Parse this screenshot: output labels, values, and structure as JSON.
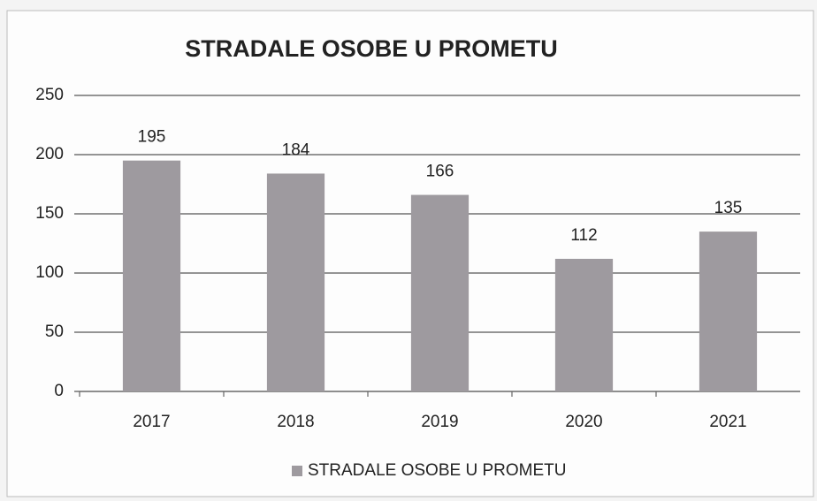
{
  "chart_data": {
    "type": "bar",
    "title": "STRADALE OSOBE U PROMETU",
    "categories": [
      "2017",
      "2018",
      "2019",
      "2020",
      "2021"
    ],
    "series": [
      {
        "name": "STRADALE OSOBE U PROMETU",
        "color": "#9e9a9f",
        "values": [
          195,
          184,
          166,
          112,
          135
        ]
      }
    ],
    "ylim": [
      0,
      250
    ],
    "yticks": [
      0,
      50,
      100,
      150,
      200,
      250
    ],
    "grid": true,
    "legend": "bottom"
  }
}
